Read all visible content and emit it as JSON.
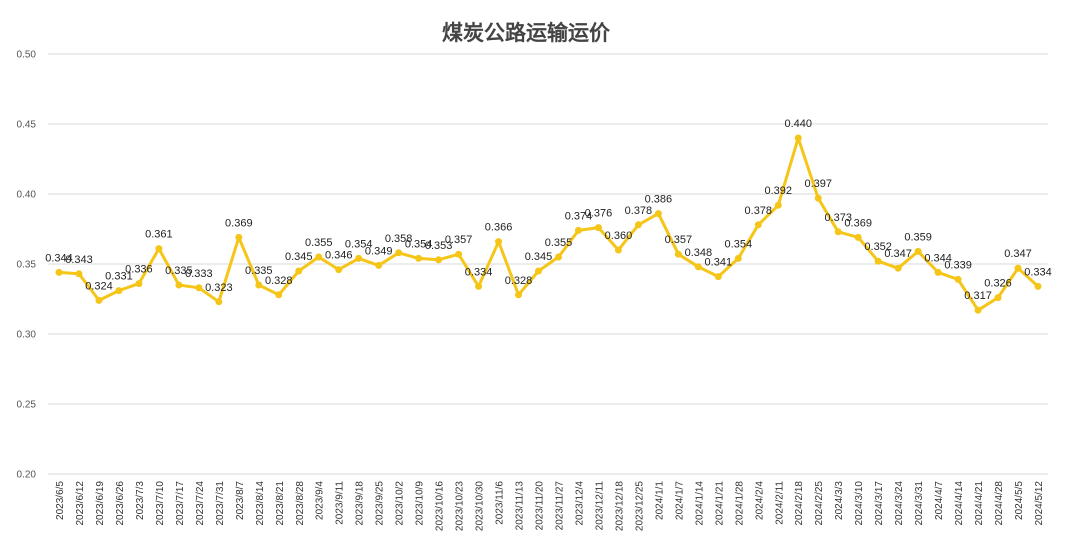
{
  "chart_data": {
    "type": "line",
    "title": "煤炭公路运输运价",
    "xlabel": "",
    "ylabel": "",
    "ylim": [
      0.2,
      0.5
    ],
    "yticks": [
      "0.50",
      "0.45",
      "0.40",
      "0.35",
      "0.30",
      "0.25",
      "0.20"
    ],
    "grid": true,
    "legend": "none",
    "line_color": "#f5c518",
    "categories": [
      "2023/6/5",
      "2023/6/12",
      "2023/6/19",
      "2023/6/26",
      "2023/7/3",
      "2023/7/10",
      "2023/7/17",
      "2023/7/24",
      "2023/7/31",
      "2023/8/7",
      "2023/8/14",
      "2023/8/21",
      "2023/8/28",
      "2023/9/4",
      "2023/9/11",
      "2023/9/18",
      "2023/9/25",
      "2023/10/2",
      "2023/10/9",
      "2023/10/16",
      "2023/10/23",
      "2023/10/30",
      "2023/11/6",
      "2023/11/13",
      "2023/11/20",
      "2023/11/27",
      "2023/12/4",
      "2023/12/11",
      "2023/12/18",
      "2023/12/25",
      "2024/1/1",
      "2024/1/7",
      "2024/1/14",
      "2024/1/21",
      "2024/1/28",
      "2024/2/4",
      "2024/2/11",
      "2024/2/18",
      "2024/2/25",
      "2024/3/3",
      "2024/3/10",
      "2024/3/17",
      "2024/3/24",
      "2024/3/31",
      "2024/4/7",
      "2024/4/14",
      "2024/4/21",
      "2024/4/28",
      "2024/5/5",
      "2024/5/12"
    ],
    "values": [
      0.344,
      0.343,
      0.324,
      0.331,
      0.336,
      0.361,
      0.335,
      0.333,
      0.323,
      0.369,
      0.335,
      0.328,
      0.345,
      0.355,
      0.346,
      0.354,
      0.349,
      0.358,
      0.354,
      0.353,
      0.357,
      0.334,
      0.366,
      0.328,
      0.345,
      0.355,
      0.374,
      0.376,
      0.36,
      0.378,
      0.386,
      0.357,
      0.348,
      0.341,
      0.354,
      0.378,
      0.392,
      0.44,
      0.397,
      0.373,
      0.369,
      0.352,
      0.347,
      0.359,
      0.344,
      0.339,
      0.317,
      0.326,
      0.347,
      0.334
    ],
    "labels": [
      "0.344",
      "0.343",
      "0.324",
      "0.331",
      "0.336",
      "0.361",
      "0.335",
      "0.333",
      "0.323",
      "0.369",
      "0.335",
      "0.328",
      "0.345",
      "0.355",
      "0.346",
      "0.354",
      "0.349",
      "0.358",
      "0.354",
      "0.353",
      "0.357",
      "0.334",
      "0.366",
      "0.328",
      "0.345",
      "0.355",
      "0.374",
      "0.376",
      "0.360",
      "0.378",
      "0.386",
      "0.357",
      "0.348",
      "0.341",
      "0.354",
      "0.378",
      "0.392",
      "0.440",
      "0.397",
      "0.373",
      "0.369",
      "0.352",
      "0.347",
      "0.359",
      "0.344",
      "0.339",
      "0.317",
      "0.326",
      "0.347",
      "0.334"
    ]
  }
}
